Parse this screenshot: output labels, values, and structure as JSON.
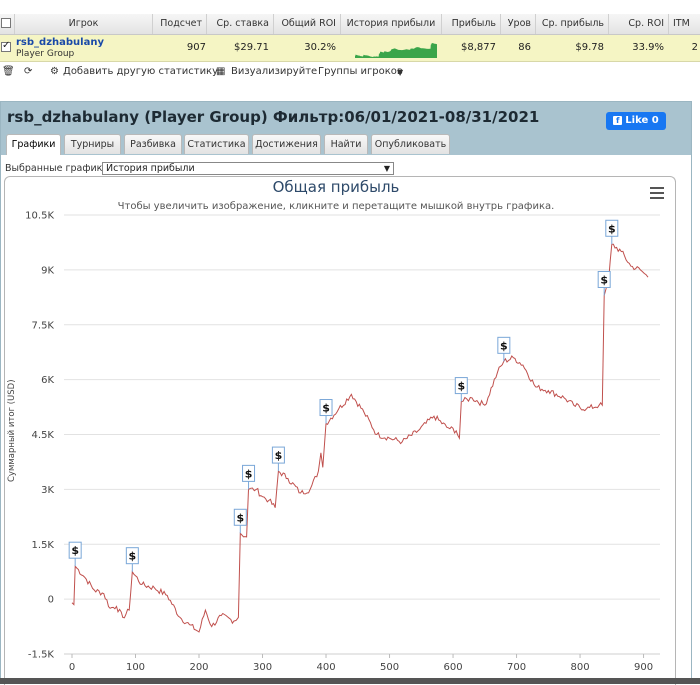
{
  "table": {
    "headers": [
      "Игрок",
      "Подсчет",
      "Ср. ставка",
      "Общий ROI",
      "История прибыли",
      "Прибыль",
      "Уров",
      "Ср. прибыль",
      "Ср. ROI",
      "ITM"
    ],
    "row": {
      "player_name": "rsb_dzhabulany",
      "player_sub": "Player Group",
      "count": "907",
      "avg_stake": "$29.71",
      "total_roi": "30.2%",
      "profit": "$8,877",
      "level": "86",
      "avg_profit": "$9.78",
      "avg_roi": "33.9%",
      "itm": "2"
    }
  },
  "toolbar": {
    "add_stats": "Добавить другую статистику",
    "visualize": "Визуализируйте",
    "groups": "Группы игроков"
  },
  "panel": {
    "title": "rsb_dzhabulany (Player Group) Фильтр:06/01/2021-08/31/2021",
    "like": "Like 0",
    "tabs": [
      "Графики",
      "Турниры",
      "Разбивка",
      "Статистика",
      "Достижения",
      "Найти",
      "Опубликовать"
    ],
    "active_tab": "Графики",
    "selected_charts_label": "Выбранные графики:",
    "selected_chart": "История прибыли"
  },
  "colors": {
    "line": "#c0504d",
    "header_bg": "#a9c3cf",
    "row_bg": "#f5f5c4",
    "like": "#1877f2",
    "spark": "#3aa54a"
  },
  "chart_data": {
    "type": "line",
    "title": "Общая прибыль",
    "subtitle": "Чтобы увеличить изображение, кликните и перетащите мышкой внутрь графика.",
    "ylabel": "Суммарный итог (USD)",
    "xlim": [
      0,
      907
    ],
    "ylim": [
      -1500,
      10500
    ],
    "y_ticks": [
      "-1.5K",
      "0",
      "1.5K",
      "3K",
      "4.5K",
      "6K",
      "7.5K",
      "9K",
      "10.5K"
    ],
    "y_tick_values": [
      -1500,
      0,
      1500,
      3000,
      4500,
      6000,
      7500,
      9000,
      10500
    ],
    "x_ticks": [
      "0",
      "100",
      "200",
      "300",
      "400",
      "500",
      "600",
      "700",
      "800",
      "900"
    ],
    "x_tick_values": [
      0,
      100,
      200,
      300,
      400,
      500,
      600,
      700,
      800,
      900
    ],
    "series": [
      {
        "points": [
          [
            0,
            -100
          ],
          [
            3,
            -150
          ],
          [
            5,
            900
          ],
          [
            20,
            600
          ],
          [
            35,
            250
          ],
          [
            50,
            150
          ],
          [
            60,
            -250
          ],
          [
            70,
            -200
          ],
          [
            80,
            -500
          ],
          [
            90,
            -300
          ],
          [
            95,
            750
          ],
          [
            110,
            400
          ],
          [
            130,
            300
          ],
          [
            150,
            100
          ],
          [
            170,
            -500
          ],
          [
            185,
            -700
          ],
          [
            200,
            -900
          ],
          [
            210,
            -300
          ],
          [
            220,
            -750
          ],
          [
            235,
            -450
          ],
          [
            255,
            -600
          ],
          [
            262,
            -500
          ],
          [
            265,
            1800
          ],
          [
            275,
            1700
          ],
          [
            278,
            3000
          ],
          [
            290,
            3000
          ],
          [
            300,
            2800
          ],
          [
            310,
            2700
          ],
          [
            320,
            2500
          ],
          [
            325,
            3500
          ],
          [
            340,
            3300
          ],
          [
            360,
            2900
          ],
          [
            375,
            3000
          ],
          [
            388,
            3500
          ],
          [
            392,
            4000
          ],
          [
            395,
            3600
          ],
          [
            400,
            4800
          ],
          [
            420,
            5200
          ],
          [
            440,
            5600
          ],
          [
            460,
            5100
          ],
          [
            480,
            4500
          ],
          [
            500,
            4400
          ],
          [
            520,
            4300
          ],
          [
            545,
            4600
          ],
          [
            570,
            5000
          ],
          [
            590,
            4700
          ],
          [
            605,
            4600
          ],
          [
            610,
            4400
          ],
          [
            613,
            5400
          ],
          [
            630,
            5500
          ],
          [
            650,
            5300
          ],
          [
            670,
            6200
          ],
          [
            680,
            6500
          ],
          [
            695,
            6600
          ],
          [
            710,
            6400
          ],
          [
            730,
            5800
          ],
          [
            750,
            5700
          ],
          [
            775,
            5500
          ],
          [
            790,
            5300
          ],
          [
            810,
            5200
          ],
          [
            830,
            5300
          ],
          [
            835,
            5300
          ],
          [
            838,
            8300
          ],
          [
            845,
            8700
          ],
          [
            850,
            9700
          ],
          [
            865,
            9500
          ],
          [
            880,
            9100
          ],
          [
            895,
            9000
          ],
          [
            907,
            8800
          ]
        ]
      }
    ],
    "markers": [
      {
        "label": "$",
        "x": 5,
        "y": 900
      },
      {
        "label": "$",
        "x": 95,
        "y": 750
      },
      {
        "label": "$",
        "x": 265,
        "y": 1800
      },
      {
        "label": "$",
        "x": 278,
        "y": 3000
      },
      {
        "label": "$",
        "x": 325,
        "y": 3500
      },
      {
        "label": "$",
        "x": 400,
        "y": 4800
      },
      {
        "label": "$",
        "x": 613,
        "y": 5400
      },
      {
        "label": "$",
        "x": 680,
        "y": 6500
      },
      {
        "label": "$",
        "x": 838,
        "y": 8300
      },
      {
        "label": "$",
        "x": 850,
        "y": 9700
      }
    ]
  }
}
